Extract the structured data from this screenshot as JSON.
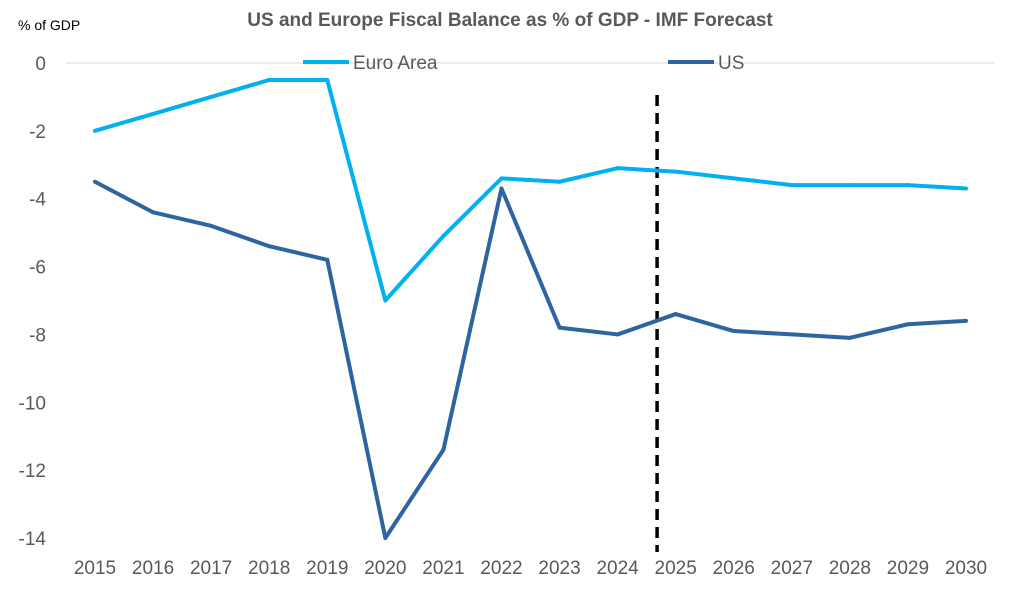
{
  "chart_data": {
    "type": "line",
    "title": "US and Europe Fiscal Balance as % of GDP - IMF Forecast",
    "ylabel": "% of GDP",
    "xlabel": "",
    "categories": [
      "2015",
      "2016",
      "2017",
      "2018",
      "2019",
      "2020",
      "2021",
      "2022",
      "2023",
      "2024",
      "2025",
      "2026",
      "2027",
      "2028",
      "2029",
      "2030"
    ],
    "ylim": [
      -14,
      0
    ],
    "yticks": [
      0,
      -2,
      -4,
      -6,
      -8,
      -10,
      -12,
      -14
    ],
    "grid": "horizontal zero line only",
    "legend": "top",
    "forecast_marker": "dashed vertical line between 2024 and 2025",
    "series": [
      {
        "name": "Euro Area",
        "color": "#00B0F0",
        "values": [
          -2.0,
          -1.5,
          -1.0,
          -0.5,
          -0.5,
          -7.0,
          -5.1,
          -3.4,
          -3.5,
          -3.1,
          -3.2,
          -3.4,
          -3.6,
          -3.6,
          -3.6,
          -3.7
        ]
      },
      {
        "name": "US",
        "color": "#2E64A0",
        "values": [
          -3.5,
          -4.4,
          -4.8,
          -5.4,
          -5.8,
          -14.0,
          -11.4,
          -3.7,
          -7.8,
          -8.0,
          -7.4,
          -7.9,
          -8.0,
          -8.1,
          -7.7,
          -7.6
        ]
      }
    ]
  }
}
